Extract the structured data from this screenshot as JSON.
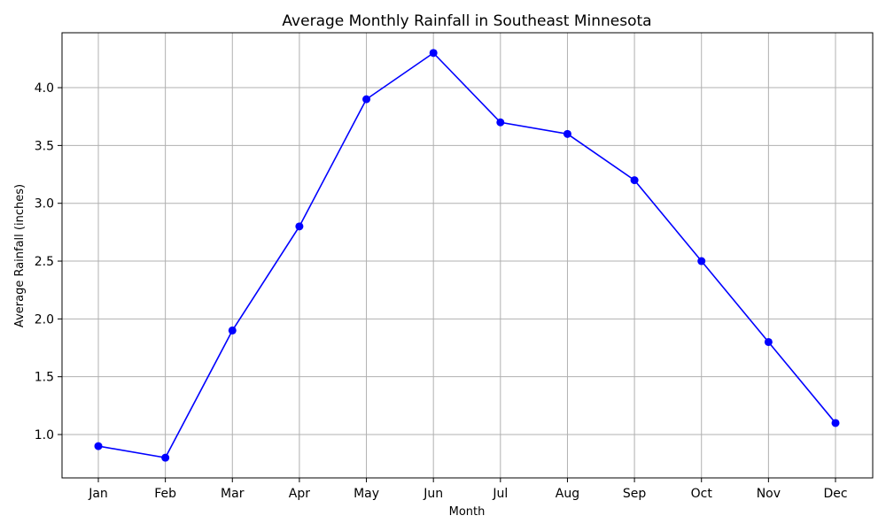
{
  "chart_data": {
    "type": "line",
    "title": "Average Monthly Rainfall in Southeast Minnesota",
    "xlabel": "Month",
    "ylabel": "Average Rainfall (inches)",
    "categories": [
      "Jan",
      "Feb",
      "Mar",
      "Apr",
      "May",
      "Jun",
      "Jul",
      "Aug",
      "Sep",
      "Oct",
      "Nov",
      "Dec"
    ],
    "series": [
      {
        "values": [
          0.9,
          0.8,
          1.9,
          2.8,
          3.9,
          4.3,
          3.7,
          3.6,
          3.2,
          2.5,
          1.8,
          1.1
        ],
        "color": "#0000ff",
        "marker": "circle"
      }
    ],
    "yticks": [
      1.0,
      1.5,
      2.0,
      2.5,
      3.0,
      3.5,
      4.0
    ],
    "ytick_labels": [
      "1.0",
      "1.5",
      "2.0",
      "2.5",
      "3.0",
      "3.5",
      "4.0"
    ],
    "ylim": [
      0.625,
      4.475
    ],
    "grid": true,
    "legend": false
  }
}
